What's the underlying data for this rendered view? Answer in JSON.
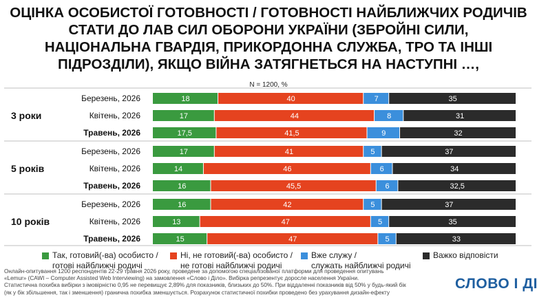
{
  "title_lines": [
    "ОЦІНКА ОСОБИСТОЇ ГОТОВНОСТІ / ГОТОВНОСТІ НАЙБЛИЖЧИХ РОДИЧІВ",
    "СТАТИ ДО ЛАВ СИЛ ОБОРОНИ УКРАЇНИ (ЗБРОЙНІ СИЛИ,",
    "НАЦІОНАЛЬНА ГВАРДІЯ, ПРИКОРДОННА СЛУЖБА, ТРО ТА ІНШІ",
    "ПІДРОЗДІЛИ), ЯКЩО ВІЙНА ЗАТЯГНЕТЬСЯ НА НАСТУПНІ …,"
  ],
  "subtitle": "N = 1200, %",
  "colors": {
    "yes": "#3a9a3f",
    "no": "#e5431f",
    "serving": "#3b8fdc",
    "hard": "#2b2b2b",
    "divider": "#bfbfbf"
  },
  "chart_data": {
    "type": "bar",
    "orientation": "horizontal-stacked",
    "xlim": [
      0,
      100
    ],
    "groups": [
      {
        "label": "3 роки",
        "rows": [
          {
            "period": "Березень, 2026",
            "bold": false,
            "values": [
              18,
              40,
              7,
              35
            ],
            "labels": [
              "18",
              "40",
              "7",
              "35"
            ]
          },
          {
            "period": "Квітень, 2026",
            "bold": false,
            "values": [
              17,
              44,
              8,
              31
            ],
            "labels": [
              "17",
              "44",
              "8",
              "31"
            ]
          },
          {
            "period": "Травень, 2026",
            "bold": true,
            "values": [
              17.5,
              41.5,
              9,
              32
            ],
            "labels": [
              "17,5",
              "41,5",
              "9",
              "32"
            ]
          }
        ]
      },
      {
        "label": "5 років",
        "rows": [
          {
            "period": "Березень, 2026",
            "bold": false,
            "values": [
              17,
              41,
              5,
              37
            ],
            "labels": [
              "17",
              "41",
              "5",
              "37"
            ]
          },
          {
            "period": "Квітень, 2026",
            "bold": false,
            "values": [
              14,
              46,
              6,
              34
            ],
            "labels": [
              "14",
              "46",
              "6",
              "34"
            ]
          },
          {
            "period": "Травень, 2026",
            "bold": true,
            "values": [
              16,
              45.5,
              6,
              32.5
            ],
            "labels": [
              "16",
              "45,5",
              "6",
              "32,5"
            ]
          }
        ]
      },
      {
        "label": "10 років",
        "rows": [
          {
            "period": "Березень, 2026",
            "bold": false,
            "values": [
              16,
              42,
              5,
              37
            ],
            "labels": [
              "16",
              "42",
              "5",
              "37"
            ]
          },
          {
            "period": "Квітень, 2026",
            "bold": false,
            "values": [
              13,
              47,
              5,
              35
            ],
            "labels": [
              "13",
              "47",
              "5",
              "35"
            ]
          },
          {
            "period": "Травень, 2026",
            "bold": true,
            "values": [
              15,
              47,
              5,
              33
            ],
            "labels": [
              "15",
              "47",
              "5",
              "33"
            ]
          }
        ]
      }
    ],
    "series": [
      {
        "key": "yes",
        "name_lines": [
          "Так, готовий(-ва) особисто /",
          "готові найближчі родичі"
        ]
      },
      {
        "key": "no",
        "name_lines": [
          "Ні, не готовий(-ва) особисто /",
          "не готові найближчі родичі"
        ]
      },
      {
        "key": "serving",
        "name_lines": [
          "Вже служу /",
          "служать найближчі родичі"
        ]
      },
      {
        "key": "hard",
        "name_lines": [
          "Важко відповісти"
        ]
      }
    ]
  },
  "footnote_lines": [
    "Онлайн-опитування 1200 респондентів 22-29 травня 2026 року, проведене за допомогою спеціалізованої платформи для проведення опитувань",
    "«Lemur» (CAWI – Computer Assisted Web Interviewing) на замовлення «Слово і Діло». Вибірка репрезентує доросле населення України.",
    "Статистична похибка вибірки з імовірністю 0,95 не перевищує 2,89% для показників, близьких до 50%. При віддаленні показників від 50% у будь-який бік",
    "(як у бік збільшення, так і зменшення) гранична похибка зменшується. Розрахунок статистичної похибки проведено без урахування дизайн-ефекту"
  ],
  "logo_text": "СЛОВО І ДІЛО"
}
